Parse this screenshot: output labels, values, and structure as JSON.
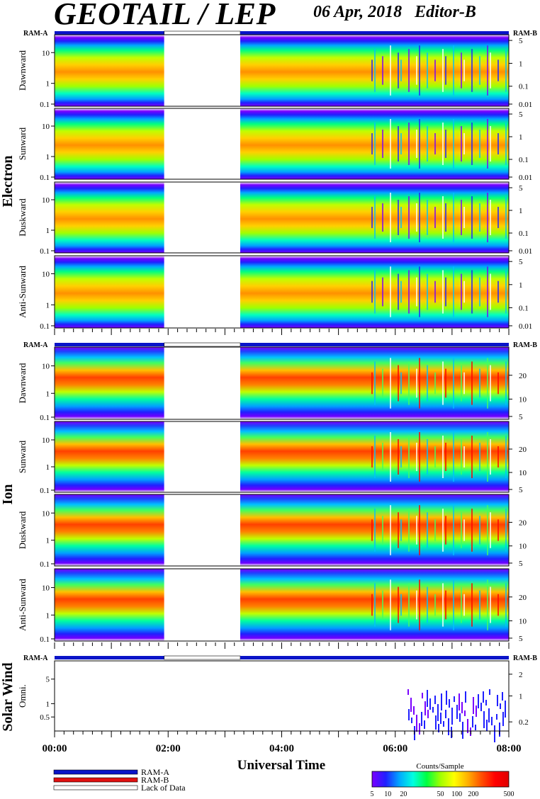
{
  "header": {
    "title": "GEOTAIL / LEP",
    "date": "06 Apr, 2018",
    "editor": "Editor-B"
  },
  "colors": {
    "ram_a": "#0a14c8",
    "ram_b": "#e01010",
    "lack": "#ffffff",
    "colorscale": [
      "#7a00ff",
      "#2020ff",
      "#00a8ff",
      "#00ffe0",
      "#00ff40",
      "#a0ff00",
      "#ffff00",
      "#ffb000",
      "#ff5000",
      "#ff0000",
      "#e00000"
    ]
  },
  "chart_data": {
    "type": "heatmap",
    "xlabel": "Universal Time",
    "x_ticks": [
      "00:00",
      "02:00",
      "04:00",
      "06:00",
      "08:00"
    ],
    "x_range_hours": [
      0,
      8
    ],
    "data_gap_hours": [
      1.93,
      3.27
    ],
    "groups": [
      {
        "name": "Electron",
        "ram_a_label": "RAM-A",
        "ram_b_label": "RAM-B",
        "panels": [
          {
            "label": "Dawnward",
            "left_ticks": [
              "10",
              "1",
              "0.1"
            ],
            "right_ticks": [
              "5",
              "1",
              "0.1",
              "0.01"
            ]
          },
          {
            "label": "Sunward",
            "left_ticks": [
              "10",
              "1",
              "0.1"
            ],
            "right_ticks": [
              "5",
              "1",
              "0.1",
              "0.01"
            ]
          },
          {
            "label": "Duskward",
            "left_ticks": [
              "10",
              "1",
              "0.1"
            ],
            "right_ticks": [
              "5",
              "1",
              "0.1",
              "0.01"
            ]
          },
          {
            "label": "Anti-Sunward",
            "left_ticks": [
              "10",
              "1",
              "0.1"
            ],
            "right_ticks": [
              "5",
              "1",
              "0.1",
              "0.01"
            ]
          }
        ]
      },
      {
        "name": "Ion",
        "ram_a_label": "RAM-A",
        "ram_b_label": "RAM-B",
        "panels": [
          {
            "label": "Dawnward",
            "left_ticks": [
              "10",
              "1",
              "0.1"
            ],
            "right_ticks": [
              "20",
              "10",
              "5"
            ]
          },
          {
            "label": "Sunward",
            "left_ticks": [
              "10",
              "1",
              "0.1"
            ],
            "right_ticks": [
              "20",
              "10",
              "5"
            ]
          },
          {
            "label": "Duskward",
            "left_ticks": [
              "10",
              "1",
              "0.1"
            ],
            "right_ticks": [
              "20",
              "10",
              "5"
            ]
          },
          {
            "label": "Anti-Sunward",
            "left_ticks": [
              "10",
              "1",
              "0.1"
            ],
            "right_ticks": [
              "20",
              "10",
              "5"
            ]
          }
        ]
      },
      {
        "name": "Solar Wind",
        "ram_a_label": "RAM-A",
        "ram_b_label": "RAM-B",
        "panels": [
          {
            "label": "Omni.",
            "left_ticks": [
              "5",
              "1",
              "0.5"
            ],
            "right_ticks": [
              "2",
              "1",
              "0.2"
            ]
          }
        ]
      }
    ],
    "legend": [
      {
        "label": "RAM-A",
        "color": "#0a14c8"
      },
      {
        "label": "RAM-B",
        "color": "#e01010"
      },
      {
        "label": "Lack of Data",
        "color": "#ffffff"
      }
    ],
    "colorbar": {
      "title": "Counts/Sample",
      "ticks": [
        "5",
        "10",
        "20",
        "50",
        "100",
        "200",
        "500"
      ]
    }
  }
}
